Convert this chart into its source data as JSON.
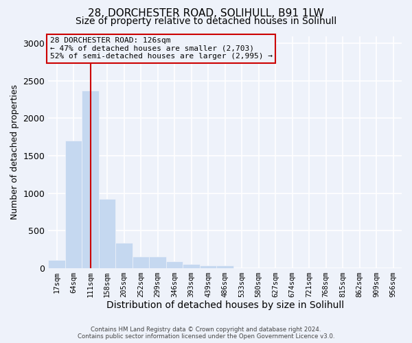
{
  "title1": "28, DORCHESTER ROAD, SOLIHULL, B91 1LW",
  "title2": "Size of property relative to detached houses in Solihull",
  "xlabel": "Distribution of detached houses by size in Solihull",
  "ylabel": "Number of detached properties",
  "bar_values": [
    110,
    1700,
    2370,
    920,
    340,
    150,
    150,
    85,
    50,
    30,
    30,
    0,
    0,
    0,
    0,
    0,
    0,
    0,
    0,
    0
  ],
  "bar_labels": [
    "17sqm",
    "64sqm",
    "111sqm",
    "158sqm",
    "205sqm",
    "252sqm",
    "299sqm",
    "346sqm",
    "393sqm",
    "439sqm",
    "486sqm",
    "533sqm",
    "580sqm",
    "627sqm",
    "674sqm",
    "721sqm",
    "768sqm",
    "815sqm",
    "862sqm",
    "909sqm",
    "956sqm"
  ],
  "bar_color": "#c5d8f0",
  "bar_edge_color": "#c5d8f0",
  "vline_index": 2,
  "vline_color": "#cc0000",
  "annotation_title": "28 DORCHESTER ROAD: 126sqm",
  "annotation_line2": "← 47% of detached houses are smaller (2,703)",
  "annotation_line3": "52% of semi-detached houses are larger (2,995) →",
  "annotation_box_edge": "#cc0000",
  "ylim": [
    0,
    3100
  ],
  "yticks": [
    0,
    500,
    1000,
    1500,
    2000,
    2500,
    3000
  ],
  "footer1": "Contains HM Land Registry data © Crown copyright and database right 2024.",
  "footer2": "Contains public sector information licensed under the Open Government Licence v3.0.",
  "bg_color": "#eef2fa",
  "grid_color": "#ffffff",
  "title1_fontsize": 11,
  "title2_fontsize": 10,
  "tick_fontsize": 7.5,
  "ylabel_fontsize": 9,
  "xlabel_fontsize": 10
}
